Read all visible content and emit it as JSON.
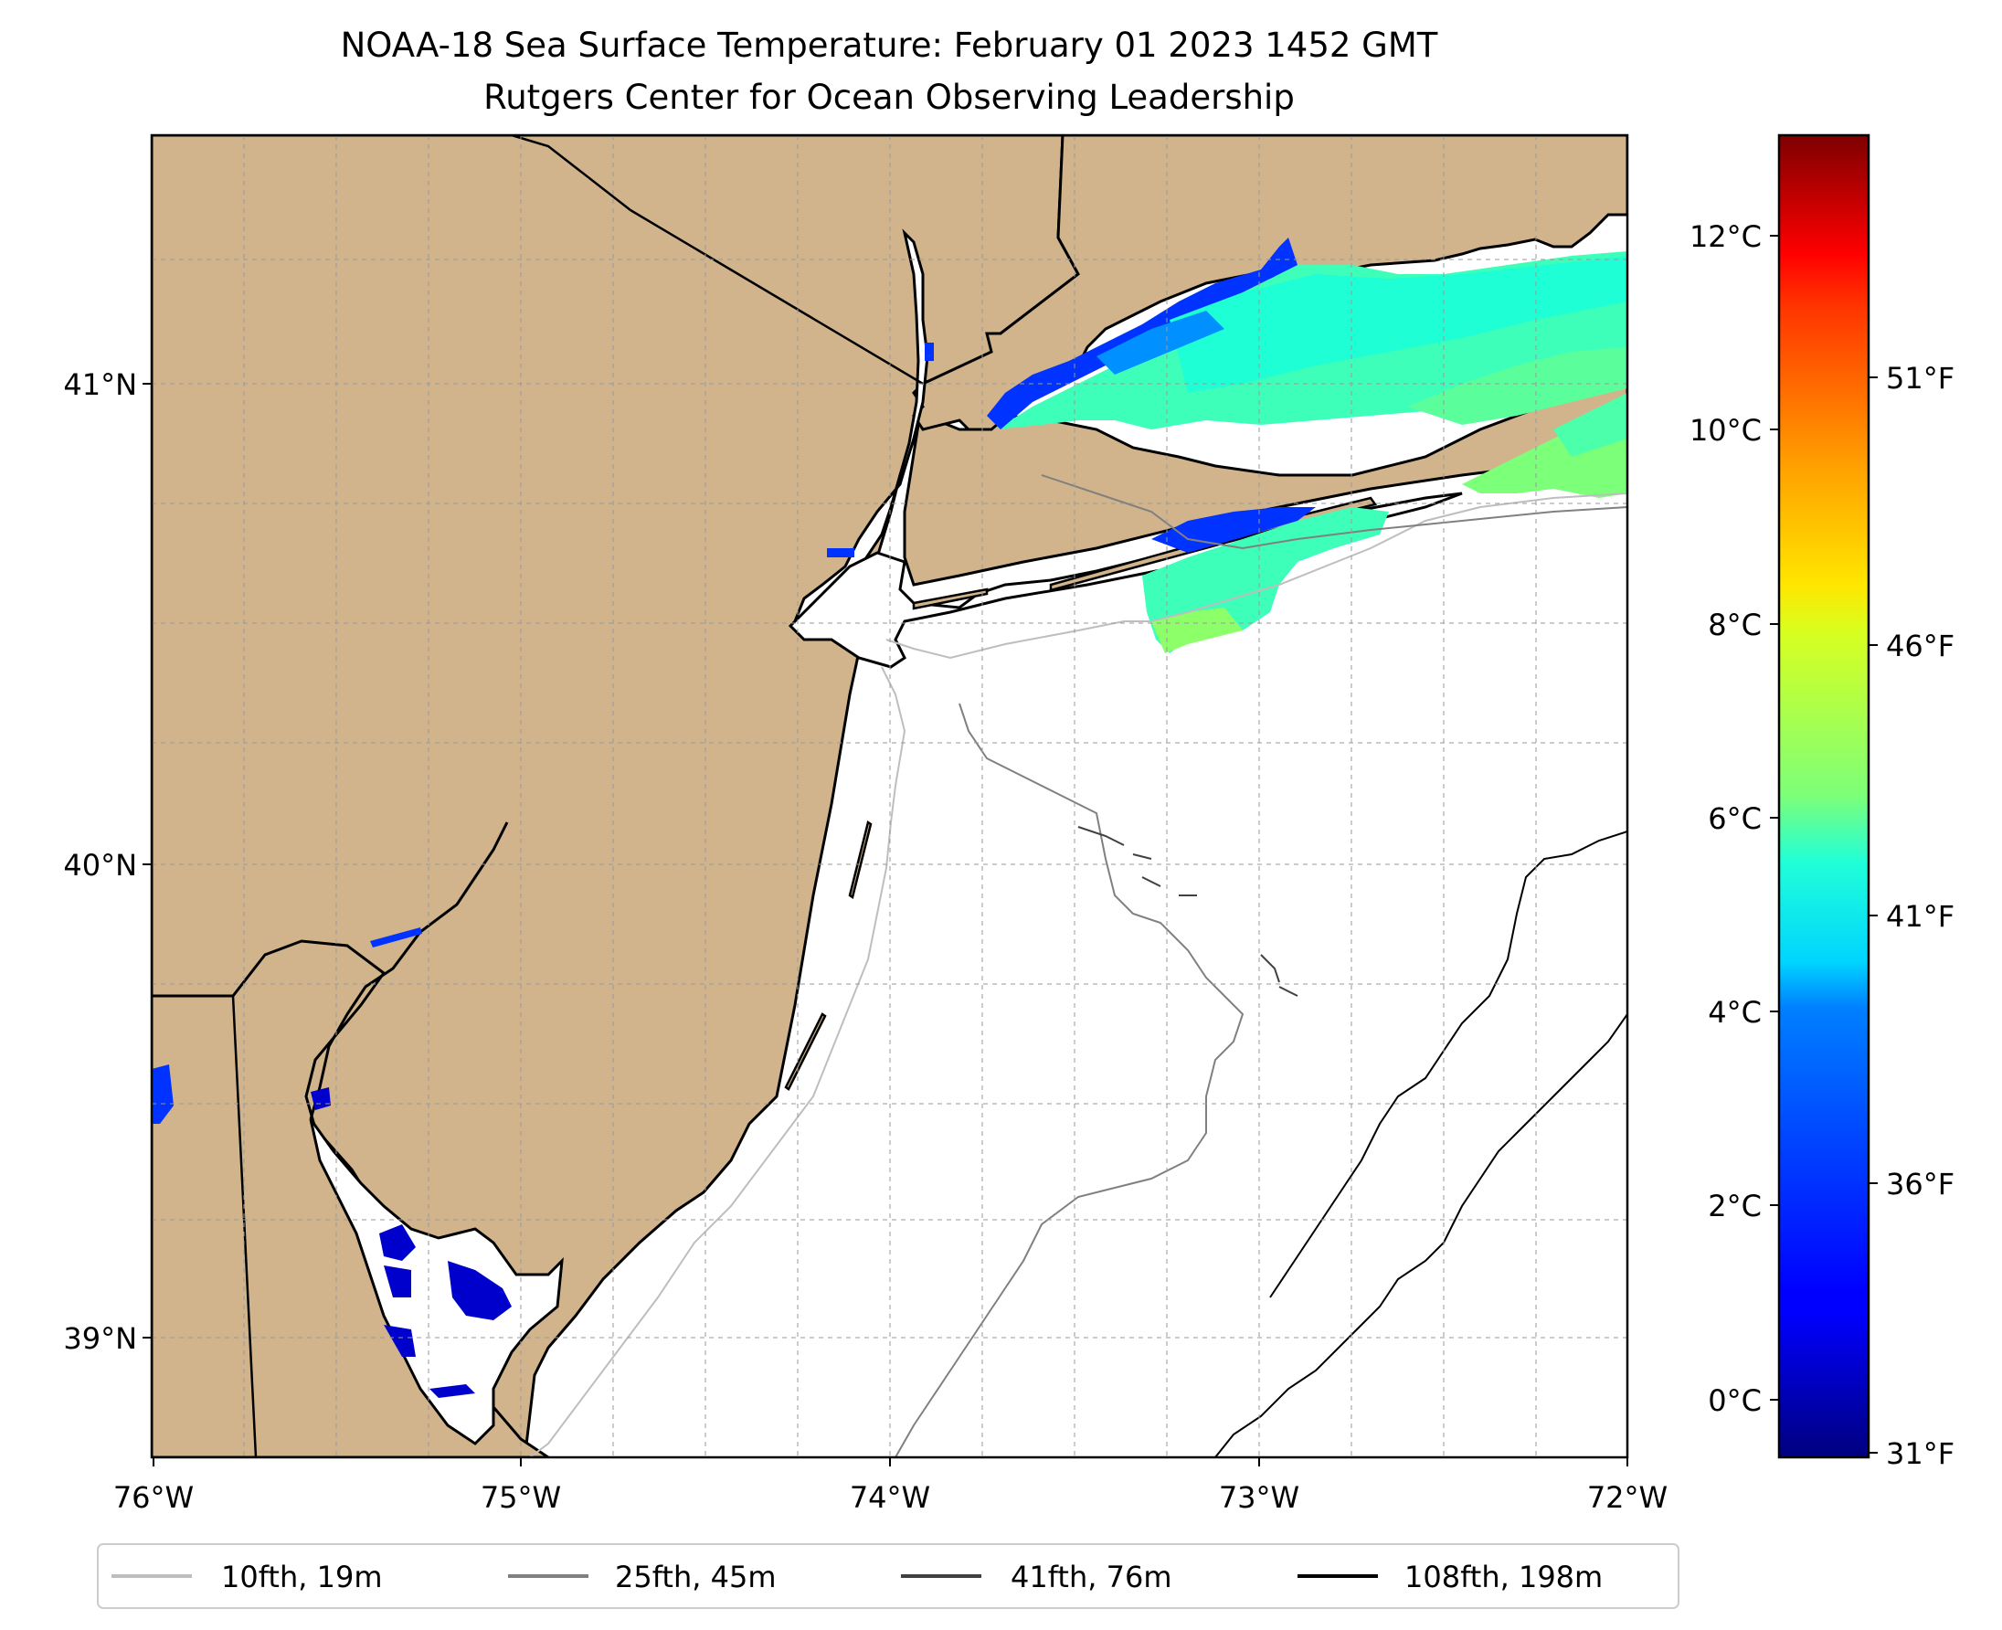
{
  "title": {
    "line1": "NOAA-18 Sea Surface Temperature: February 01 2023 1452 GMT",
    "line2": "Rutgers Center for Ocean Observing Leadership"
  },
  "map": {
    "lon_labels": [
      "76°W",
      "75°W",
      "74°W",
      "73°W",
      "72°W"
    ],
    "lat_labels": [
      "41°N",
      "40°N",
      "39°N"
    ],
    "land_color": "#D2B48C",
    "ocean_color": "#FFFFFF"
  },
  "colorbar": {
    "celsius_labels": [
      "12°C",
      "10°C",
      "8°C",
      "6°C",
      "4°C",
      "2°C",
      "0°C"
    ],
    "fahrenheit_labels": [
      "51°F",
      "46°F",
      "41°F",
      "36°F",
      "31°F"
    ],
    "colormap": "jet"
  },
  "legend": {
    "items": [
      {
        "label": "10fth, 19m",
        "color": "#BEBEBE"
      },
      {
        "label": "25fth, 45m",
        "color": "#808080"
      },
      {
        "label": "41fth, 76m",
        "color": "#404040"
      },
      {
        "label": "108fth, 198m",
        "color": "#000000"
      }
    ]
  }
}
